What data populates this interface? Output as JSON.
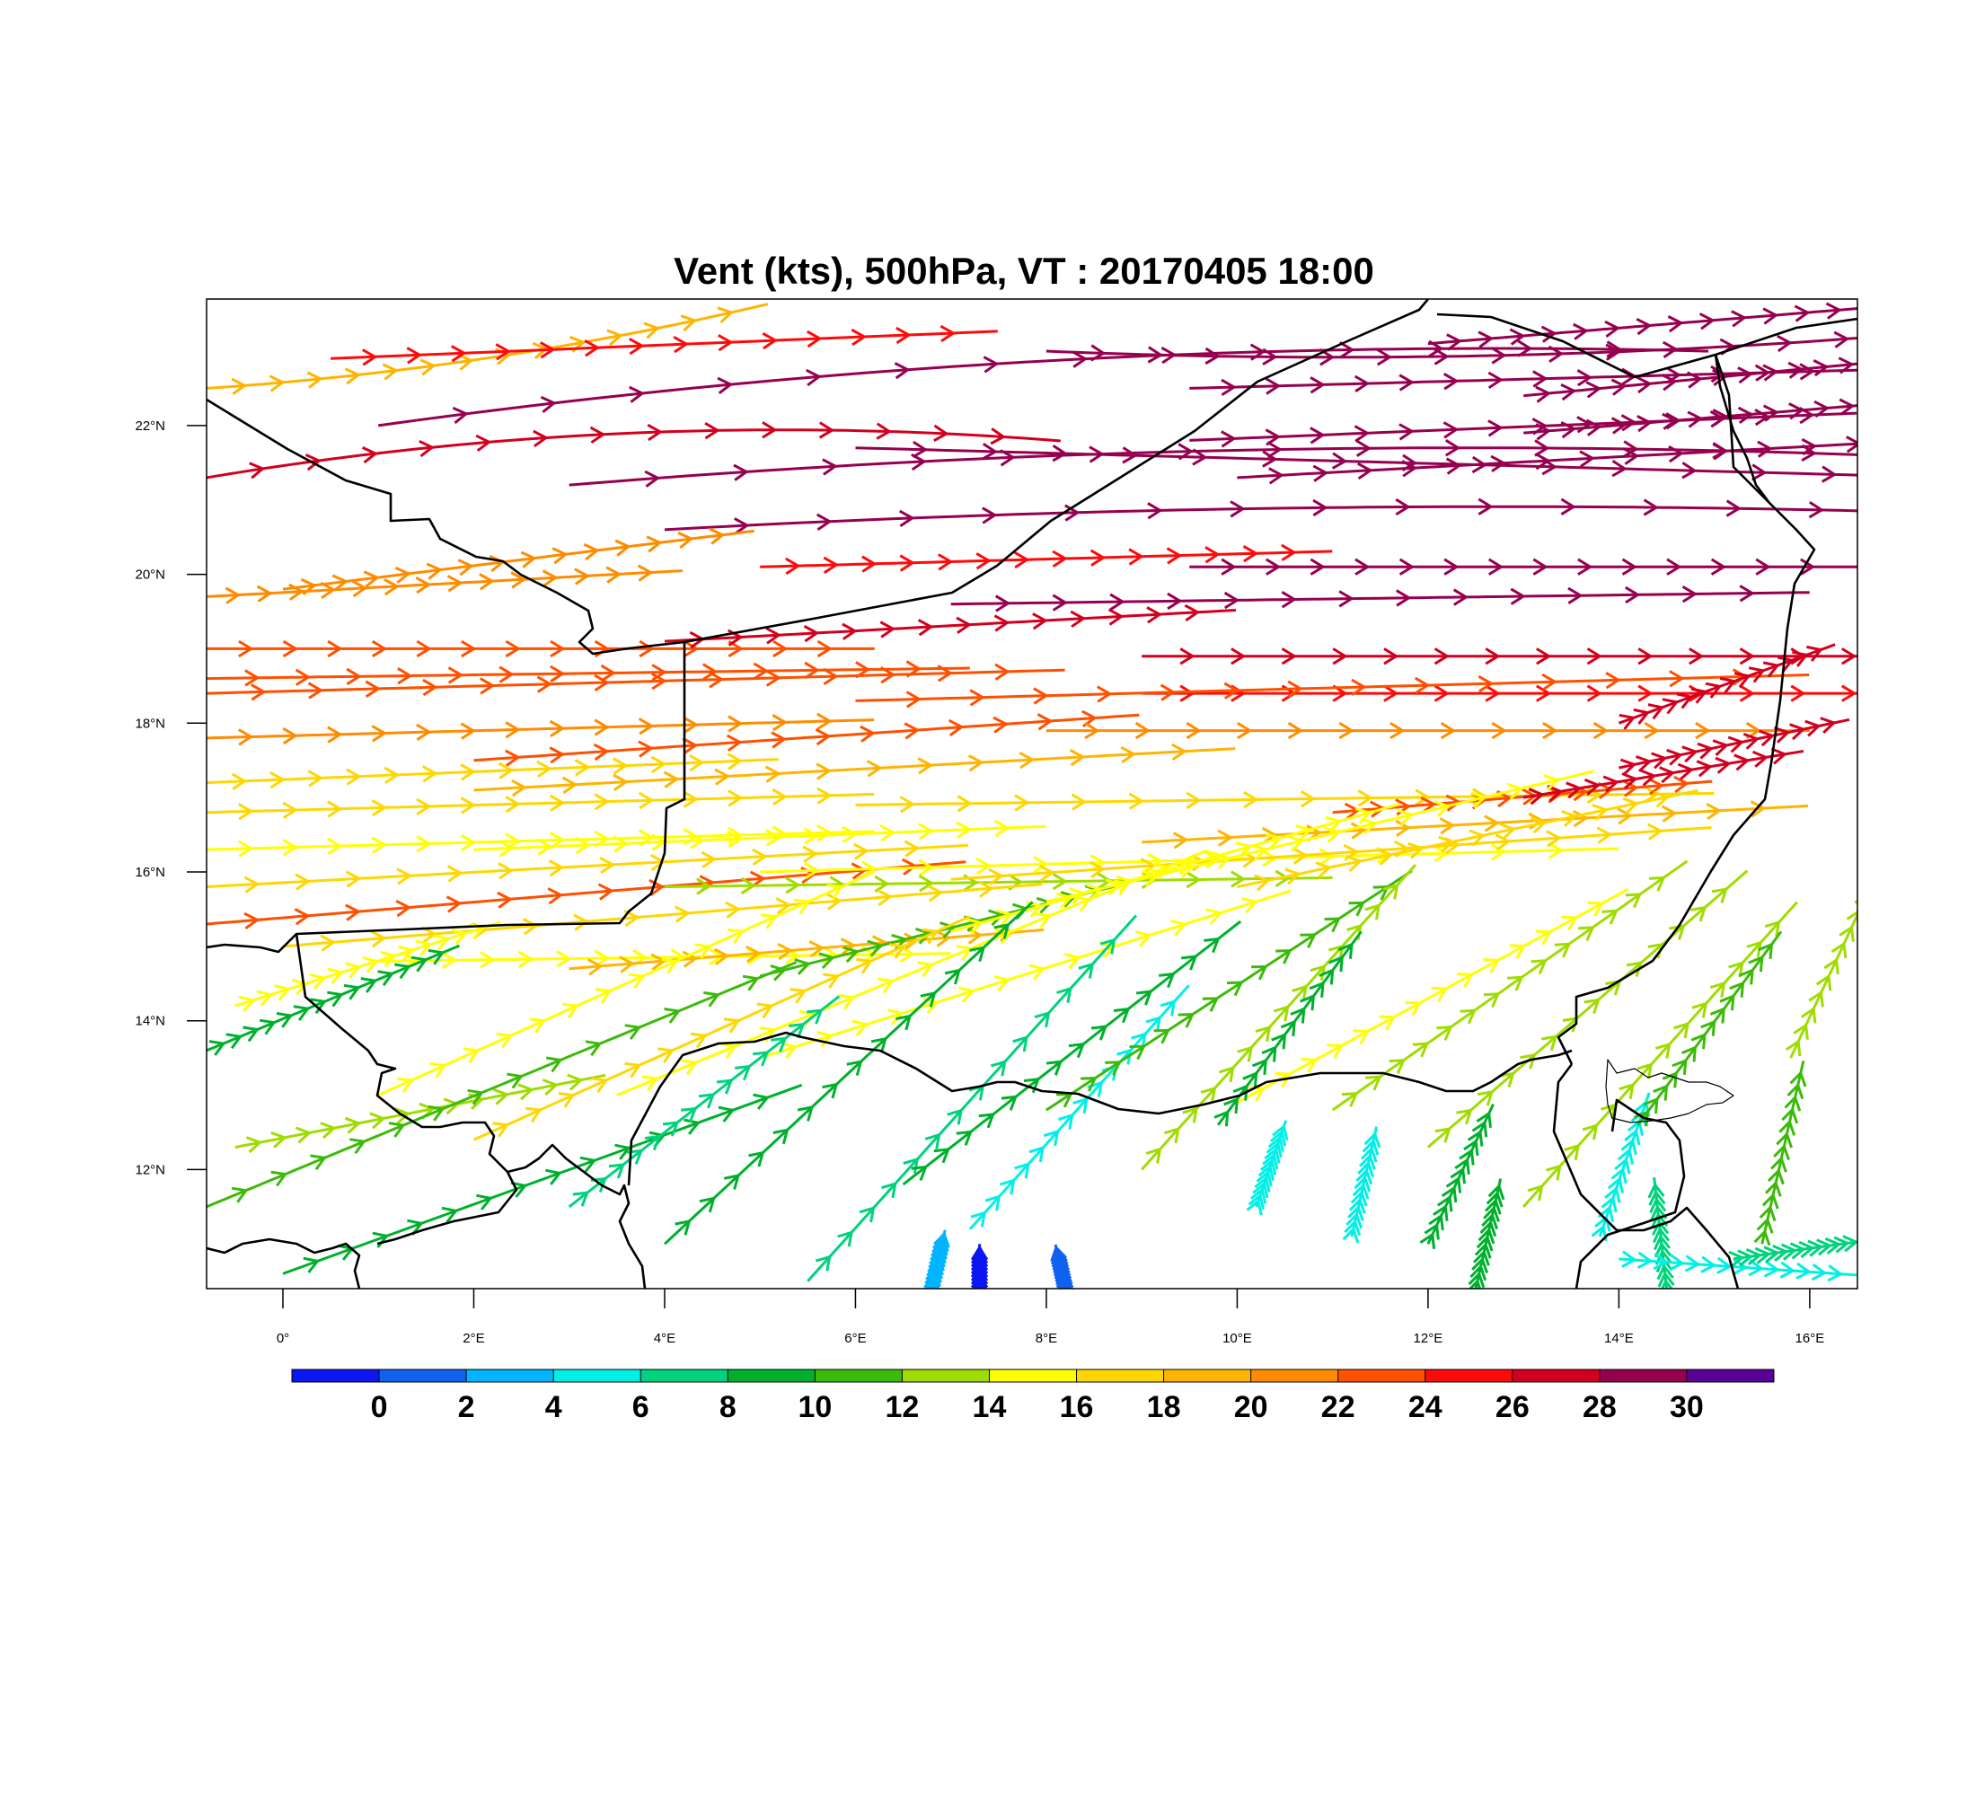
{
  "title": "Vent (kts), 500hPa, VT : 20170405  18:00",
  "map": {
    "projection": "lat-lon",
    "lon_range": [
      -0.8,
      16.5
    ],
    "lat_range": [
      10.4,
      23.7
    ],
    "x_ticks": [
      {
        "value": 0,
        "label": "0°"
      },
      {
        "value": 2,
        "label": "2°E"
      },
      {
        "value": 4,
        "label": "4°E"
      },
      {
        "value": 6,
        "label": "6°E"
      },
      {
        "value": 8,
        "label": "8°E"
      },
      {
        "value": 10,
        "label": "10°E"
      },
      {
        "value": 12,
        "label": "12°E"
      },
      {
        "value": 14,
        "label": "14°E"
      },
      {
        "value": 16,
        "label": "16°E"
      }
    ],
    "y_ticks": [
      {
        "value": 12,
        "label": "12°N"
      },
      {
        "value": 14,
        "label": "14°N"
      },
      {
        "value": 16,
        "label": "16°N"
      },
      {
        "value": 18,
        "label": "18°N"
      },
      {
        "value": 20,
        "label": "20°N"
      },
      {
        "value": 22,
        "label": "22°N"
      }
    ],
    "border_color": "#000000",
    "streamline_style": "barbed streamlines colored by wind speed"
  },
  "colorbar": {
    "units": "kts",
    "colors": [
      "#0a17f2",
      "#0f62f0",
      "#00b4ff",
      "#00f0e6",
      "#00d27d",
      "#00b02d",
      "#3cba0a",
      "#a0dc00",
      "#ffff00",
      "#ffd700",
      "#ffb400",
      "#ff8c00",
      "#ff5000",
      "#ff0a0a",
      "#d2001e",
      "#960050",
      "#5a0096"
    ],
    "labels": [
      "0",
      "2",
      "4",
      "6",
      "8",
      "10",
      "12",
      "14",
      "16",
      "18",
      "20",
      "22",
      "24",
      "26",
      "28",
      "30"
    ]
  }
}
